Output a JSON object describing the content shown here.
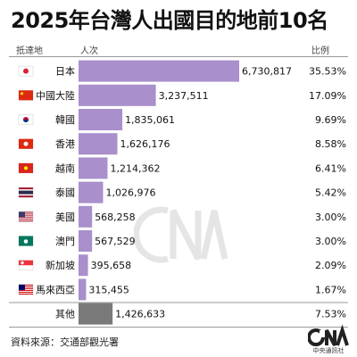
{
  "title": "2025年台灣人出國目的地前10名",
  "headers": {
    "destination": "抵達地",
    "count": "人次",
    "share": "比例"
  },
  "source": "資料來源：交通部觀光署",
  "logo": {
    "text": "CNA",
    "label": "中央通訊社"
  },
  "colors": {
    "bar": "#a98fcc",
    "other_bar": "#7a7a7a",
    "accent": "#222222"
  },
  "chart_data": {
    "type": "bar",
    "orientation": "horizontal",
    "categories": [
      "日本",
      "中國大陸",
      "韓國",
      "香港",
      "越南",
      "泰國",
      "美國",
      "澳門",
      "新加坡",
      "馬來西亞",
      "其他"
    ],
    "flags": [
      "jp-flag-icon",
      "cn-flag-icon",
      "kr-flag-icon",
      "hk-flag-icon",
      "vn-flag-icon",
      "th-flag-icon",
      "us-flag-icon",
      "mo-flag-icon",
      "sg-flag-icon",
      "my-flag-icon",
      ""
    ],
    "values": [
      6730817,
      3237511,
      1835061,
      1626176,
      1214362,
      1026976,
      568258,
      567529,
      395658,
      315455,
      1426633
    ],
    "value_labels": [
      "6,730,817",
      "3,237,511",
      "1,835,061",
      "1,626,176",
      "1,214,362",
      "1,026,976",
      "568,258",
      "567,529",
      "395,658",
      "315,455",
      "1,426,633"
    ],
    "shares": [
      "35.53%",
      "17.09%",
      "9.69%",
      "8.58%",
      "6.41%",
      "5.42%",
      "3.00%",
      "3.00%",
      "2.09%",
      "1.67%",
      "7.53%"
    ],
    "xlim": [
      0,
      6730817
    ]
  }
}
